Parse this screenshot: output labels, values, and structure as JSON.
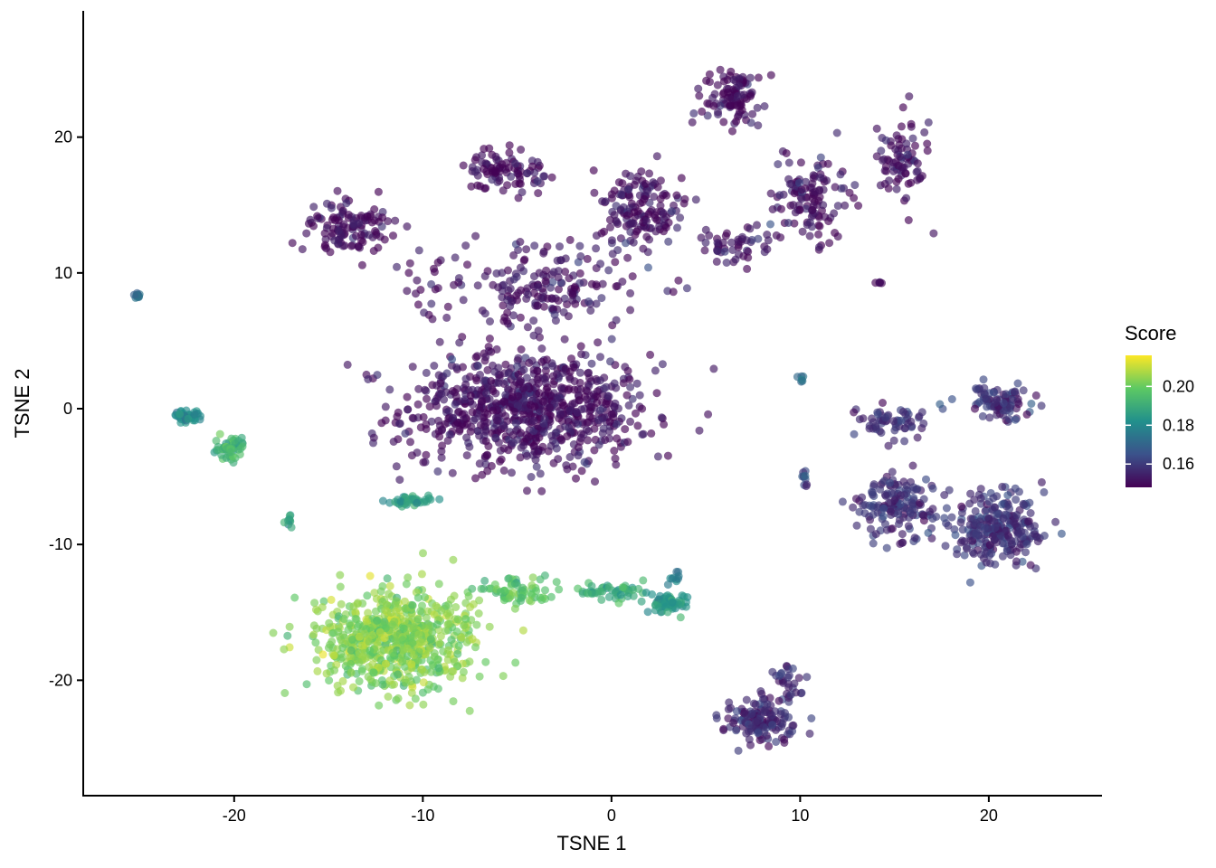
{
  "chart_data": {
    "type": "scatter",
    "xlabel": "TSNE 1",
    "ylabel": "TSNE 2",
    "xlim": [
      -28,
      26
    ],
    "ylim": [
      -28.5,
      29.3
    ],
    "x_ticks": [
      -20,
      -10,
      0,
      10,
      20
    ],
    "x_tick_labels": [
      "-20",
      "-10",
      "0",
      "10",
      "20"
    ],
    "y_ticks": [
      -20,
      -10,
      0,
      10,
      20
    ],
    "y_tick_labels": [
      "-20",
      "-10",
      "0",
      "10",
      "20"
    ],
    "grid": false,
    "color_scale": {
      "name": "viridis",
      "title": "Score",
      "range": [
        0.148,
        0.216
      ],
      "ticks": [
        0.16,
        0.18,
        0.2
      ],
      "tick_labels": [
        "0.16",
        "0.18",
        "0.20"
      ],
      "colors": [
        "#440154",
        "#3b528b",
        "#21908c",
        "#5dc963",
        "#fde725"
      ]
    },
    "legend_position": "right",
    "clusters": [
      {
        "cx": -4.5,
        "cy": 0,
        "sx": 6.0,
        "sy": 4.0,
        "n": 800,
        "score": 0.151
      },
      {
        "cx": -4,
        "cy": 9,
        "sx": 5.5,
        "sy": 3.0,
        "n": 200,
        "score": 0.152
      },
      {
        "cx": -14,
        "cy": 13.5,
        "sx": 2.0,
        "sy": 1.8,
        "n": 120,
        "score": 0.15
      },
      {
        "cx": -5.5,
        "cy": 17.5,
        "sx": 2.0,
        "sy": 1.2,
        "n": 90,
        "score": 0.15
      },
      {
        "cx": 1.5,
        "cy": 15,
        "sx": 2.2,
        "sy": 2.5,
        "n": 150,
        "score": 0.151
      },
      {
        "cx": 6.5,
        "cy": 23,
        "sx": 1.5,
        "sy": 2.0,
        "n": 100,
        "score": 0.15
      },
      {
        "cx": 10.5,
        "cy": 15.5,
        "sx": 2.0,
        "sy": 3.0,
        "n": 120,
        "score": 0.151
      },
      {
        "cx": 15.5,
        "cy": 18,
        "sx": 1.2,
        "sy": 3.0,
        "n": 80,
        "score": 0.151
      },
      {
        "cx": 6.5,
        "cy": 12,
        "sx": 2.0,
        "sy": 1.5,
        "n": 50,
        "score": 0.152
      },
      {
        "cx": 20.5,
        "cy": -9,
        "sx": 2.3,
        "sy": 2.3,
        "n": 260,
        "score": 0.158
      },
      {
        "cx": 15,
        "cy": -7,
        "sx": 2.0,
        "sy": 2.0,
        "n": 150,
        "score": 0.157
      },
      {
        "cx": 20.5,
        "cy": 0.5,
        "sx": 1.6,
        "sy": 1.0,
        "n": 90,
        "score": 0.158
      },
      {
        "cx": 15,
        "cy": -1,
        "sx": 1.6,
        "sy": 1.0,
        "n": 60,
        "score": 0.157
      },
      {
        "cx": 8,
        "cy": -23,
        "sx": 1.8,
        "sy": 1.5,
        "n": 140,
        "score": 0.156
      },
      {
        "cx": 9.5,
        "cy": -20,
        "sx": 0.8,
        "sy": 1.0,
        "n": 30,
        "score": 0.155
      },
      {
        "cx": -11.5,
        "cy": -17,
        "sx": 3.8,
        "sy": 3.5,
        "n": 650,
        "score": 0.203
      },
      {
        "cx": -5,
        "cy": -13.5,
        "sx": 2.0,
        "sy": 0.8,
        "n": 70,
        "score": 0.197
      },
      {
        "cx": 0,
        "cy": -13.5,
        "sx": 1.8,
        "sy": 0.6,
        "n": 50,
        "score": 0.19
      },
      {
        "cx": 3,
        "cy": -14.3,
        "sx": 0.8,
        "sy": 0.6,
        "n": 60,
        "score": 0.185
      },
      {
        "cx": -22.5,
        "cy": -0.5,
        "sx": 0.9,
        "sy": 0.4,
        "n": 40,
        "score": 0.18
      },
      {
        "cx": -20.3,
        "cy": -2.8,
        "sx": 0.9,
        "sy": 0.9,
        "n": 50,
        "score": 0.192
      },
      {
        "cx": -10.5,
        "cy": -6.8,
        "sx": 1.2,
        "sy": 0.3,
        "n": 40,
        "score": 0.186
      },
      {
        "cx": -25.1,
        "cy": 8.3,
        "sx": 0.15,
        "sy": 0.3,
        "n": 12,
        "score": 0.175
      },
      {
        "cx": 10.1,
        "cy": 2.2,
        "sx": 0.2,
        "sy": 0.2,
        "n": 6,
        "score": 0.17
      },
      {
        "cx": 10.2,
        "cy": -5.5,
        "sx": 0.15,
        "sy": 0.8,
        "n": 10,
        "score": 0.16
      },
      {
        "cx": 14.2,
        "cy": 9.3,
        "sx": 0.2,
        "sy": 0.1,
        "n": 5,
        "score": 0.152
      },
      {
        "cx": 3.3,
        "cy": -12.5,
        "sx": 0.3,
        "sy": 0.5,
        "n": 10,
        "score": 0.178
      },
      {
        "cx": -17.1,
        "cy": -8.3,
        "sx": 0.2,
        "sy": 0.6,
        "n": 10,
        "score": 0.19
      }
    ]
  }
}
